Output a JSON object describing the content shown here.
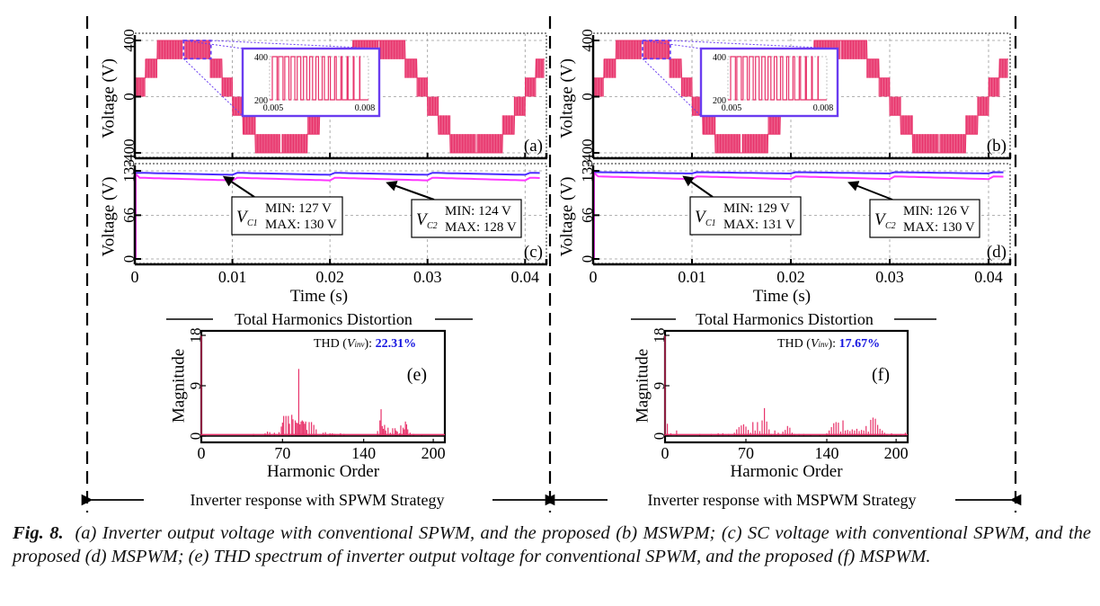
{
  "figure": {
    "caption_label": "Fig. 8.",
    "caption_text": "(a) Inverter output voltage with conventional SPWM, and the proposed (b) MSWPM; (c) SC voltage with conventional SPWM, and the proposed (d) MSPWM; (e) THD spectrum of inverter output voltage for conventional SPWM, and the proposed (f) MSPWM.",
    "left_banner": "Inverter response with SPWM Strategy",
    "right_banner": "Inverter response with MSPWM Strategy",
    "thd_section_title": "Total Harmonics Distortion"
  },
  "colors": {
    "waveform": "#e8336b",
    "vc1": "#4b2bff",
    "vc2": "#ff33ff",
    "inset_border": "#6a3cf0",
    "thd_value": "#1515e0",
    "spectrum": "#e8336b"
  },
  "chart_data": [
    {
      "id": "a",
      "type": "line",
      "title": "Inverter output voltage (conventional SPWM)",
      "panel_label": "(a)",
      "ylabel": "Voltage (V)",
      "xlabel": "",
      "xlim": [
        0,
        0.042
      ],
      "ylim": [
        -400,
        400
      ],
      "yticks": [
        "400",
        "0",
        "-400"
      ],
      "ytick_values": [
        400,
        0,
        -400
      ],
      "xtick_values": [
        0,
        0.01,
        0.02,
        0.03,
        0.04
      ],
      "grid": true,
      "levels": [
        -400,
        -267,
        -133,
        0,
        133,
        267,
        400
      ],
      "fundamental_hz": 50,
      "inset": {
        "xticks": [
          "0.005",
          "0.008"
        ],
        "yticks": [
          "400",
          "200"
        ],
        "xlim": [
          0.005,
          0.008
        ],
        "ylim": [
          200,
          400
        ]
      }
    },
    {
      "id": "b",
      "type": "line",
      "title": "Inverter output voltage (proposed MSPWM)",
      "panel_label": "(b)",
      "ylabel": "Voltage (V)",
      "xlabel": "",
      "xlim": [
        0,
        0.042
      ],
      "ylim": [
        -400,
        400
      ],
      "yticks": [
        "400",
        "0",
        "-400"
      ],
      "ytick_values": [
        400,
        0,
        -400
      ],
      "xtick_values": [
        0,
        0.01,
        0.02,
        0.03,
        0.04
      ],
      "grid": true,
      "levels": [
        -400,
        -267,
        -133,
        0,
        133,
        267,
        400
      ],
      "fundamental_hz": 50,
      "inset": {
        "xticks": [
          "0.005",
          "0.008"
        ],
        "yticks": [
          "400",
          "200"
        ],
        "xlim": [
          0.005,
          0.008
        ],
        "ylim": [
          200,
          400
        ]
      }
    },
    {
      "id": "c",
      "type": "line",
      "title": "SC voltage (conventional SPWM)",
      "panel_label": "(c)",
      "ylabel": "Voltage (V)",
      "xlabel": "Time (s)",
      "xlim": [
        0,
        0.042
      ],
      "ylim": [
        0,
        133
      ],
      "yticks": [
        "133",
        "66",
        "0"
      ],
      "ytick_values": [
        133,
        66,
        0
      ],
      "xticks": [
        "0",
        "0.01",
        "0.02",
        "0.03",
        "0.04"
      ],
      "xtick_values": [
        0,
        0.01,
        0.02,
        0.03,
        0.04
      ],
      "grid": true,
      "series": [
        {
          "name": "VC1",
          "sub": "C1",
          "min": 127,
          "max": 130,
          "min_label": "MIN: 127 V",
          "max_label": "MAX: 130 V"
        },
        {
          "name": "VC2",
          "sub": "C2",
          "min": 124,
          "max": 128,
          "min_label": "MIN: 124 V",
          "max_label": "MAX: 128 V"
        }
      ]
    },
    {
      "id": "d",
      "type": "line",
      "title": "SC voltage (proposed MSPWM)",
      "panel_label": "(d)",
      "ylabel": "Voltage (V)",
      "xlabel": "Time (s)",
      "xlim": [
        0,
        0.042
      ],
      "ylim": [
        0,
        133
      ],
      "yticks": [
        "133",
        "66",
        "0"
      ],
      "ytick_values": [
        133,
        66,
        0
      ],
      "xticks": [
        "0",
        "0.01",
        "0.02",
        "0.03",
        "0.04"
      ],
      "xtick_values": [
        0,
        0.01,
        0.02,
        0.03,
        0.04
      ],
      "grid": true,
      "series": [
        {
          "name": "VC1",
          "sub": "C1",
          "min": 129,
          "max": 131,
          "min_label": "MIN: 129 V",
          "max_label": "MAX: 131 V"
        },
        {
          "name": "VC2",
          "sub": "C2",
          "min": 126,
          "max": 130,
          "min_label": "MIN: 126 V",
          "max_label": "MAX: 130 V"
        }
      ]
    },
    {
      "id": "e",
      "type": "bar",
      "title": "THD spectrum (conventional SPWM)",
      "panel_label": "(e)",
      "ylabel": "Magnitude",
      "xlabel": "Harmonic Order",
      "xlim": [
        0,
        210
      ],
      "ylim": [
        0,
        18
      ],
      "xticks": [
        "0",
        "70",
        "140",
        "200"
      ],
      "xtick_values": [
        0,
        70,
        140,
        200
      ],
      "yticks": [
        "18",
        "9",
        "0"
      ],
      "ytick_values": [
        18,
        9,
        0
      ],
      "thd_label": "THD (",
      "thd_var": "V",
      "thd_sub": "inv",
      "thd_suffix": "):",
      "thd_value": "22.31%",
      "x": [
        0,
        45,
        55,
        57,
        59,
        63,
        67,
        69,
        70,
        71,
        73,
        75,
        76,
        78,
        79,
        81,
        82,
        83,
        84,
        85,
        86,
        87,
        88,
        89,
        90,
        91,
        93,
        95,
        97,
        99,
        105,
        107,
        111,
        113,
        115,
        120,
        123,
        152,
        154,
        155,
        156,
        157,
        158,
        159,
        161,
        163,
        165,
        167,
        168,
        169,
        171,
        172,
        174,
        175,
        176,
        177,
        178,
        180,
        183,
        190
      ],
      "values": [
        18,
        0.4,
        0.5,
        0.8,
        0.7,
        0.6,
        0.7,
        1.7,
        2.4,
        3.6,
        3.6,
        3.6,
        2.2,
        3.8,
        3.0,
        2.8,
        2.4,
        2.3,
        12.0,
        2.1,
        2.6,
        2.8,
        2.6,
        2.2,
        2.6,
        1.1,
        2.5,
        2.5,
        2.0,
        1.2,
        0.6,
        0.7,
        0.5,
        0.5,
        0.4,
        0.5,
        0.4,
        0.9,
        2.8,
        4.8,
        1.8,
        1.3,
        2.0,
        1.0,
        1.5,
        0.6,
        1.4,
        1.4,
        1.0,
        0.8,
        0.5,
        1.9,
        1.5,
        1.2,
        2.6,
        2.1,
        1.2,
        0.6,
        0.4,
        0.3
      ]
    },
    {
      "id": "f",
      "type": "bar",
      "title": "THD spectrum (proposed MSPWM)",
      "panel_label": "(f)",
      "ylabel": "Magnitude",
      "xlabel": "Harmonic Order",
      "xlim": [
        0,
        210
      ],
      "ylim": [
        0,
        18
      ],
      "xticks": [
        "0",
        "70",
        "140",
        "200"
      ],
      "xtick_values": [
        0,
        70,
        140,
        200
      ],
      "yticks": [
        "18",
        "9",
        "0"
      ],
      "ytick_values": [
        18,
        9,
        0
      ],
      "thd_label": "THD (",
      "thd_var": "V",
      "thd_sub": "inv",
      "thd_suffix": "):",
      "thd_value": "17.67%",
      "x": [
        0,
        2,
        5,
        10,
        30,
        40,
        46,
        50,
        55,
        60,
        62,
        64,
        66,
        68,
        70,
        72,
        74,
        76,
        78,
        80,
        82,
        84,
        86,
        88,
        90,
        92,
        95,
        98,
        102,
        104,
        106,
        108,
        110,
        112,
        116,
        120,
        126,
        134,
        140,
        142,
        144,
        146,
        148,
        150,
        152,
        154,
        156,
        158,
        160,
        162,
        164,
        166,
        168,
        170,
        172,
        174,
        176,
        178,
        180,
        182,
        184,
        186,
        188,
        190,
        192,
        196,
        200,
        204,
        208
      ],
      "values": [
        18,
        2.2,
        0.5,
        1.0,
        0.4,
        0.4,
        0.5,
        0.5,
        0.4,
        0.6,
        1.2,
        1.6,
        1.9,
        2.1,
        1.7,
        1.1,
        0.6,
        2.5,
        1.0,
        2.5,
        0.9,
        2.8,
        5.0,
        2.6,
        1.2,
        0.4,
        1.0,
        0.6,
        0.8,
        1.1,
        1.8,
        1.5,
        0.6,
        0.4,
        0.4,
        0.4,
        0.3,
        0.3,
        0.5,
        1.0,
        1.6,
        2.3,
        2.5,
        2.4,
        0.8,
        2.8,
        1.0,
        1.1,
        0.9,
        1.2,
        1.0,
        1.3,
        0.9,
        1.1,
        1.0,
        1.8,
        0.8,
        2.9,
        3.3,
        3.1,
        2.0,
        1.3,
        1.0,
        0.6,
        0.4,
        0.5,
        0.3,
        0.4,
        0.6
      ]
    }
  ]
}
